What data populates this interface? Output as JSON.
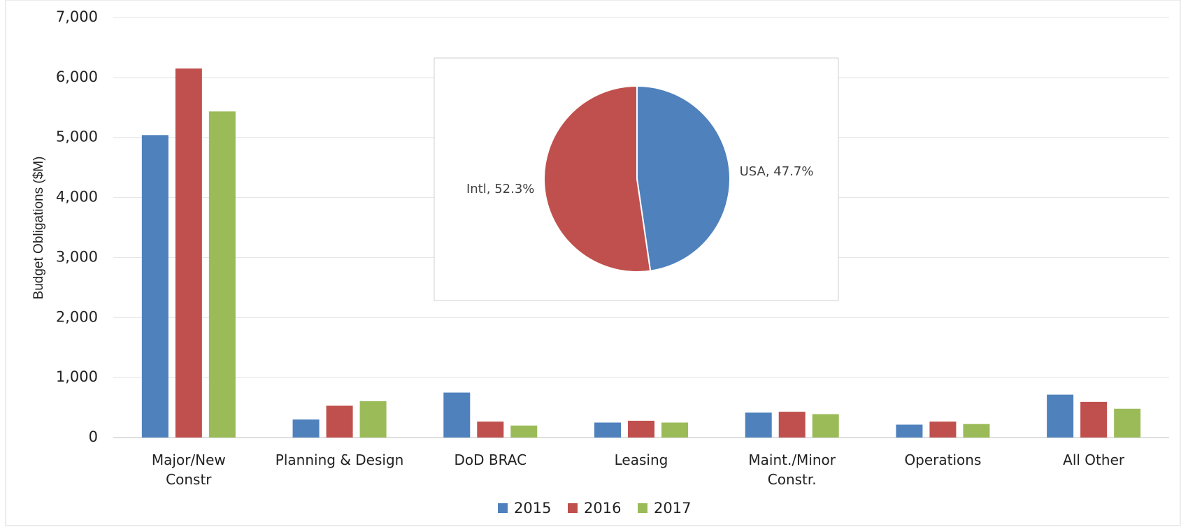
{
  "chart_data": [
    {
      "type": "bar",
      "y_label": "Budget Obligations ($M)",
      "categories": [
        "Major/New\nConstr",
        "Planning & Design",
        "DoD BRAC",
        "Leasing",
        "Maint./Minor\nConstr.",
        "Operations",
        "All Other"
      ],
      "series": [
        {
          "name": "2015",
          "color": "#4f81bd",
          "values": [
            5040,
            300,
            750,
            250,
            415,
            215,
            715
          ]
        },
        {
          "name": "2016",
          "color": "#c0504d",
          "values": [
            6150,
            530,
            265,
            280,
            430,
            265,
            595
          ]
        },
        {
          "name": "2017",
          "color": "#9bbb59",
          "values": [
            5435,
            605,
            200,
            250,
            390,
            225,
            480
          ]
        }
      ],
      "ylim": [
        0,
        7000
      ],
      "yticks": [
        0,
        {
          "value": 1000,
          "label": "1,000"
        },
        {
          "value": 2000,
          "label": "2,000"
        },
        {
          "value": 3000,
          "label": "3,000"
        },
        {
          "value": 4000,
          "label": "4,000"
        },
        {
          "value": 5000,
          "label": "5,000"
        },
        {
          "value": 6000,
          "label": "6,000"
        },
        {
          "value": 7000,
          "label": "7,000"
        }
      ],
      "grid": true,
      "legend": "bottom"
    },
    {
      "type": "pie",
      "categories": [
        "USA",
        "Intl"
      ],
      "values": [
        47.7,
        52.3
      ],
      "value_labels": [
        "USA, 47.7%",
        "Intl, 52.3%"
      ],
      "colors": [
        "#4f81bd",
        "#c0504d"
      ]
    }
  ]
}
